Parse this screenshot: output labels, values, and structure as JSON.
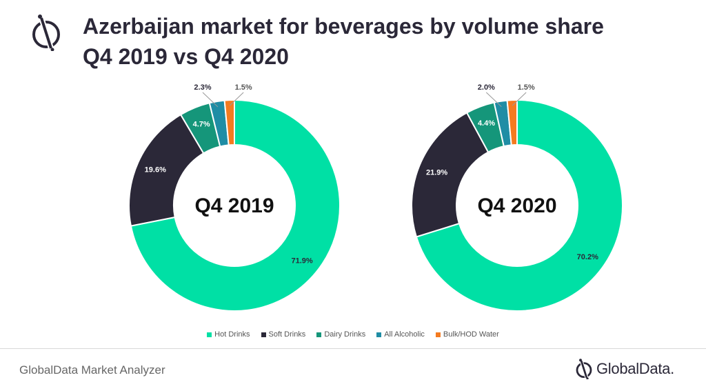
{
  "title": {
    "line1": "Azerbaijan market for beverages by volume share",
    "line2": "Q4 2019 vs Q4 2020"
  },
  "colors": {
    "hot_drinks": "#00e0a5",
    "soft_drinks": "#2b2838",
    "dairy_drinks": "#15967a",
    "all_alcoholic": "#1f8da5",
    "bulk_hod_water": "#f47b20"
  },
  "chart_data": [
    {
      "type": "pie",
      "variant": "donut",
      "center_label": "Q4 2019",
      "categories": [
        "Hot Drinks",
        "Soft Drinks",
        "Dairy Drinks",
        "All Alcoholic",
        "Bulk/HOD Water"
      ],
      "values": [
        71.9,
        19.6,
        4.7,
        2.3,
        1.5
      ],
      "labels": [
        "71.9%",
        "19.6%",
        "4.7%",
        "2.3%",
        "1.5%"
      ]
    },
    {
      "type": "pie",
      "variant": "donut",
      "center_label": "Q4 2020",
      "categories": [
        "Hot Drinks",
        "Soft Drinks",
        "Dairy Drinks",
        "All Alcoholic",
        "Bulk/HOD Water"
      ],
      "values": [
        70.2,
        21.9,
        4.4,
        2.0,
        1.5
      ],
      "labels": [
        "70.2%",
        "21.9%",
        "4.4%",
        "2.0%",
        "1.5%"
      ]
    }
  ],
  "legend": [
    {
      "label": "Hot Drinks",
      "color": "#00e0a5"
    },
    {
      "label": "Soft Drinks",
      "color": "#2b2838"
    },
    {
      "label": "Dairy Drinks",
      "color": "#15967a"
    },
    {
      "label": "All Alcoholic",
      "color": "#1f8da5"
    },
    {
      "label": "Bulk/HOD Water",
      "color": "#f47b20"
    }
  ],
  "footer": {
    "source": "GlobalData Market Analyzer",
    "brand": "GlobalData."
  }
}
